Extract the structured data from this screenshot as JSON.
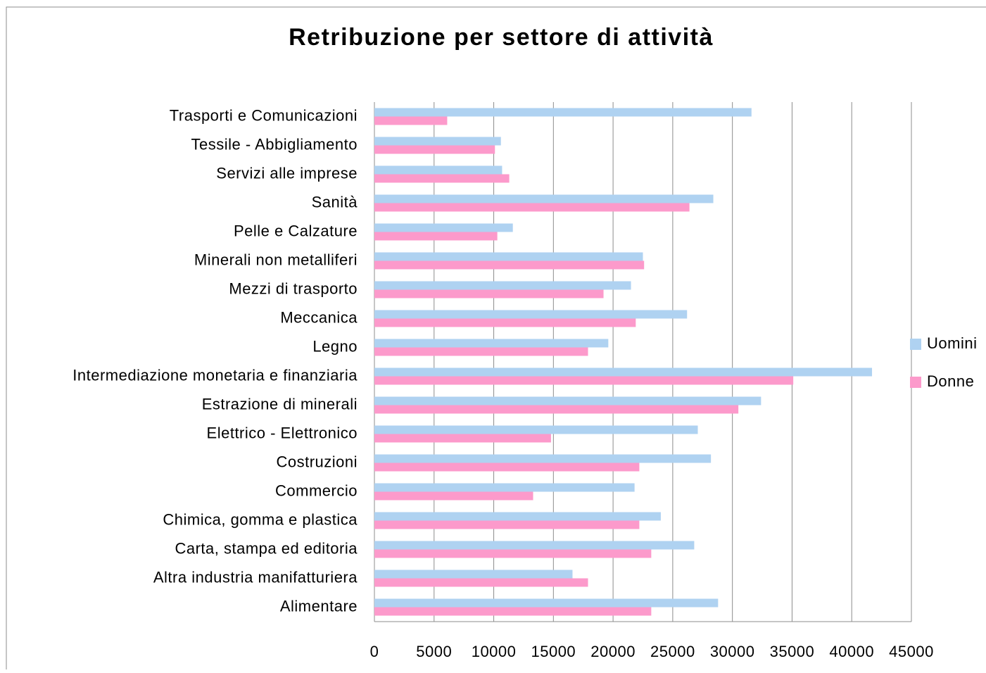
{
  "chart_data": {
    "type": "bar",
    "orientation": "horizontal",
    "title": "Retribuzione per settore di attività",
    "categories": [
      "Trasporti e Comunicazioni",
      "Tessile - Abbigliamento",
      "Servizi alle imprese",
      "Sanità",
      "Pelle e Calzature",
      "Minerali non metalliferi",
      "Mezzi di trasporto",
      "Meccanica",
      "Legno",
      "Intermediazione monetaria e finanziaria",
      "Estrazione di minerali",
      "Elettrico - Elettronico",
      "Costruzioni",
      "Commercio",
      "Chimica, gomma e plastica",
      "Carta, stampa ed editoria",
      "Altra industria manifatturiera",
      "Alimentare"
    ],
    "series": [
      {
        "name": "Uomini",
        "color": "#afd2f1",
        "values": [
          31600,
          10600,
          10700,
          28400,
          11600,
          22500,
          21500,
          26200,
          19600,
          41700,
          32400,
          27100,
          28200,
          21800,
          24000,
          26800,
          16600,
          28800
        ]
      },
      {
        "name": "Donne",
        "color": "#fc9acb",
        "values": [
          6100,
          10100,
          11300,
          26400,
          10300,
          22600,
          19200,
          21900,
          17900,
          35100,
          30500,
          14800,
          22200,
          13300,
          22200,
          23200,
          17900,
          23200
        ]
      }
    ],
    "xlim": [
      0,
      45000
    ],
    "xticks": [
      0,
      5000,
      10000,
      15000,
      20000,
      25000,
      30000,
      35000,
      40000,
      45000
    ],
    "grid": true,
    "legend": "right"
  }
}
